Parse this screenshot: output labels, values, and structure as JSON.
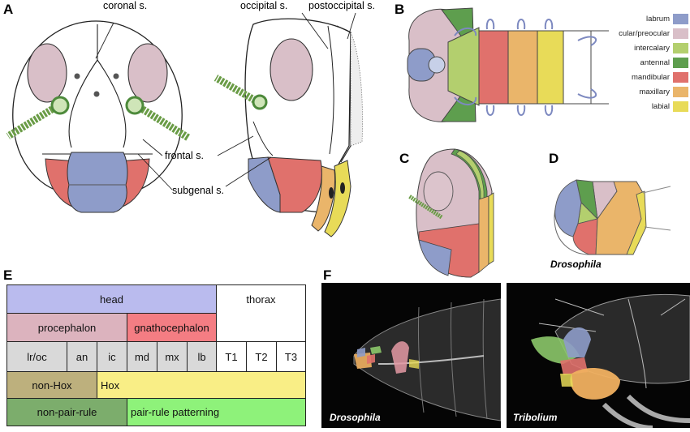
{
  "panels": {
    "a": "A",
    "b": "B",
    "c": "C",
    "d": "D",
    "e": "E",
    "f": "F"
  },
  "annotations": {
    "coronal": "coronal s.",
    "occipital": "occipital s.",
    "postoccipital": "postoccipital s.",
    "frontal": "frontal s.",
    "subgenal": "subgenal s."
  },
  "legend": [
    {
      "label": "labrum",
      "color": "#8e9cc9"
    },
    {
      "label": "cular/preocular",
      "color": "#d9bfc8"
    },
    {
      "label": "intercalary",
      "color": "#b3cf6e"
    },
    {
      "label": "antennal",
      "color": "#5e9e4e"
    },
    {
      "label": "mandibular",
      "color": "#e0716c"
    },
    {
      "label": "maxillary",
      "color": "#eab56a"
    },
    {
      "label": "labial",
      "color": "#e8db58"
    }
  ],
  "panel_d_caption": "Drosophila",
  "table": {
    "head": "head",
    "thorax": "thorax",
    "procephalon": "procephalon",
    "gnathocephalon": "gnathocephalon",
    "segments": [
      "lr/oc",
      "an",
      "ic",
      "md",
      "mx",
      "lb",
      "T1",
      "T2",
      "T3"
    ],
    "non_hox": "non-Hox",
    "hox": "Hox",
    "non_pair_rule": "non-pair-rule",
    "pair_rule": "pair-rule patterning",
    "colors": {
      "head": "#babbee",
      "procephalon": "#dcb3be",
      "gnathocephalon": "#f47d83",
      "segments": "#d9d9d9",
      "non_hox": "#bdb07d",
      "hox": "#f9ee86",
      "non_pair_rule": "#7cad6c",
      "pair_rule": "#8ef27a"
    }
  },
  "micrographs": {
    "left": "Drosophila",
    "right": "Tribolium"
  }
}
